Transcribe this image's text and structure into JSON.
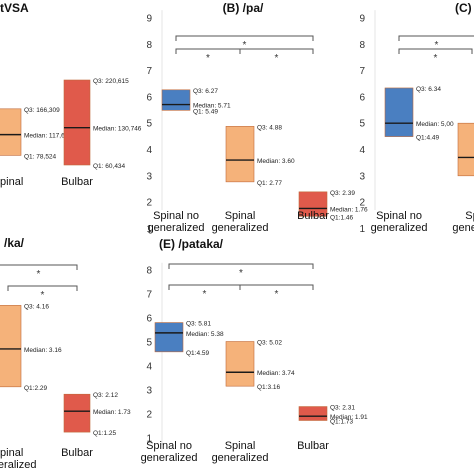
{
  "chart_data": [
    {
      "type": "box",
      "title": "tVSA",
      "categories": [
        "Spinal",
        "Bulbar"
      ],
      "category_lines": [
        [
          "Spinal",
          ""
        ],
        [
          "Bulbar",
          ""
        ]
      ],
      "boxes": [
        {
          "q1": 78524,
          "median": 117681,
          "q3": 166309,
          "color": "#f5b27a",
          "labels": [
            "Q3: 166,309",
            "Median: 117,681",
            "Q1: 78,524"
          ]
        },
        {
          "q1": 60434,
          "median": 130746,
          "q3": 220615,
          "color": "#e05a4b",
          "labels": [
            "Q3: 220,615",
            "Median: 130,746",
            "Q1: 60,434"
          ]
        }
      ],
      "yticks": [],
      "brackets": []
    },
    {
      "type": "box",
      "title": "(B) /pa/",
      "categories": [
        "Spinal no generalized",
        "Spinal generalized",
        "Bulbar"
      ],
      "category_lines": [
        [
          "Spinal no",
          "generalized"
        ],
        [
          "Spinal",
          "generalized"
        ],
        [
          "Bulbar",
          ""
        ]
      ],
      "ylim": [
        0.8,
        9.3
      ],
      "yticks": [
        1,
        2,
        3,
        4,
        5,
        6,
        7,
        8,
        9
      ],
      "boxes": [
        {
          "q1": 5.49,
          "median": 5.71,
          "q3": 6.27,
          "color": "#4a7fc1",
          "labels": [
            "Q3: 6.27",
            "Median: 5.71",
            "Q1: 5.49"
          ]
        },
        {
          "q1": 2.77,
          "median": 3.6,
          "q3": 4.88,
          "color": "#f5b27a",
          "labels": [
            "Q3: 4.88",
            "Median: 3.60",
            "Q1: 2.77"
          ]
        },
        {
          "q1": 1.46,
          "median": 1.76,
          "q3": 2.39,
          "color": "#e05a4b",
          "labels": [
            "Q3: 2.39",
            "Median: 1.76",
            "Q1:1.46"
          ]
        }
      ],
      "brackets": [
        {
          "from": 0,
          "to": 2,
          "label": "*"
        },
        {
          "from": 0,
          "to": 1,
          "label": "*"
        },
        {
          "from": 1,
          "to": 2,
          "label": "*"
        }
      ]
    },
    {
      "type": "box",
      "title": "(C) /",
      "categories": [
        "Spinal no generalized",
        "Spinal generalized"
      ],
      "category_lines": [
        [
          "Spinal no",
          "generalized"
        ],
        [
          "Sp",
          "generali"
        ]
      ],
      "ylim": [
        0.8,
        9.3
      ],
      "yticks": [
        1,
        2,
        3,
        4,
        5,
        6,
        7,
        8,
        9
      ],
      "boxes": [
        {
          "q1": 4.49,
          "median": 5.0,
          "q3": 6.34,
          "color": "#4a7fc1",
          "labels": [
            "Q3: 6.34",
            "Median: 5,00",
            "Q1:4.49"
          ]
        },
        {
          "q1": 3.0,
          "median": 3.7,
          "q3": 5.0,
          "color": "#f5b27a",
          "labels": []
        }
      ],
      "brackets": [
        {
          "from": 0,
          "to": 2,
          "label": "*"
        },
        {
          "from": 0,
          "to": 1,
          "label": "*"
        }
      ]
    },
    {
      "type": "box",
      "title": "/ka/",
      "categories": [
        "Spinal generalized",
        "Bulbar"
      ],
      "category_lines": [
        [
          "Spinal",
          "generalized"
        ],
        [
          "Bulbar",
          ""
        ]
      ],
      "yticks": [],
      "boxes": [
        {
          "q1": 2.29,
          "median": 3.16,
          "q3": 4.16,
          "color": "#f5b27a",
          "labels": [
            "Q3: 4.16",
            "Median: 3.16",
            "Q1:2.29"
          ]
        },
        {
          "q1": 1.25,
          "median": 1.73,
          "q3": 2.12,
          "color": "#e05a4b",
          "labels": [
            "Q3: 2.12",
            "Median: 1.73",
            "Q1:1.25"
          ]
        }
      ],
      "brackets": [
        {
          "from": -1,
          "to": 1,
          "label": "*"
        },
        {
          "from": 0,
          "to": 1,
          "label": "*"
        }
      ]
    },
    {
      "type": "box",
      "title": "(E) /pataka/",
      "categories": [
        "Spinal no generalized",
        "Spinal generalized",
        "Bulbar"
      ],
      "category_lines": [
        [
          "Spinal no",
          "generalized"
        ],
        [
          "Spinal",
          "generalized"
        ],
        [
          "Bulbar",
          ""
        ]
      ],
      "ylim": [
        0.8,
        8.3
      ],
      "yticks": [
        1,
        2,
        3,
        4,
        5,
        6,
        7,
        8
      ],
      "boxes": [
        {
          "q1": 4.59,
          "median": 5.38,
          "q3": 5.81,
          "color": "#4a7fc1",
          "labels": [
            "Q3: 5.81",
            "Median: 5.38",
            "Q1:4.59"
          ]
        },
        {
          "q1": 3.16,
          "median": 3.74,
          "q3": 5.02,
          "color": "#f5b27a",
          "labels": [
            "Q3: 5.02",
            "Median: 3.74",
            "Q1:3.16"
          ]
        },
        {
          "q1": 1.73,
          "median": 1.91,
          "q3": 2.31,
          "color": "#e05a4b",
          "labels": [
            "Q3: 2.31",
            "Median: 1.91",
            "Q1:1.73"
          ]
        }
      ],
      "brackets": [
        {
          "from": 0,
          "to": 2,
          "label": "*"
        },
        {
          "from": 0,
          "to": 1,
          "label": "*"
        },
        {
          "from": 1,
          "to": 2,
          "label": "*"
        }
      ]
    }
  ]
}
